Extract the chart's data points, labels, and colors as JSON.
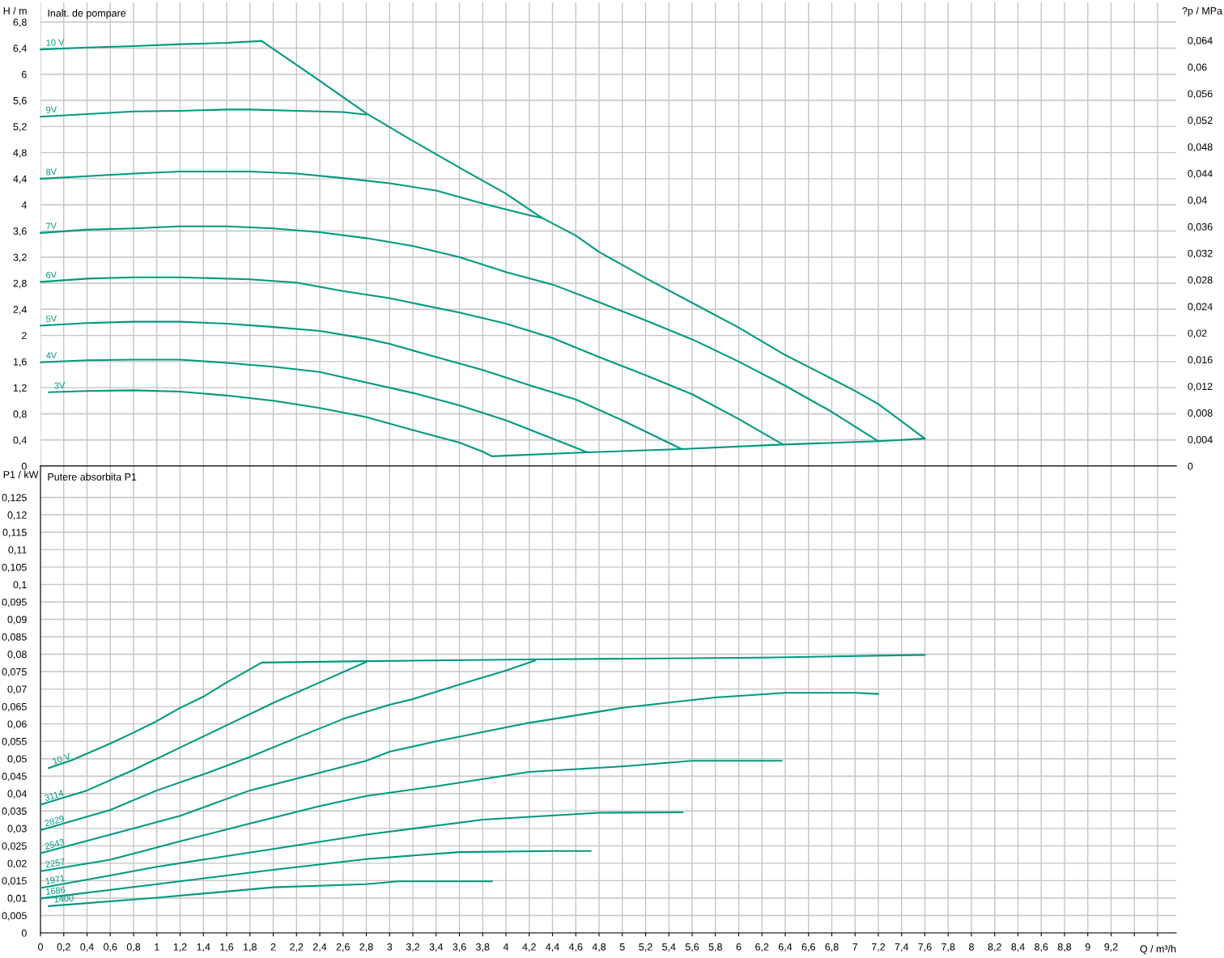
{
  "chart_data": [
    {
      "type": "line",
      "title": "Inalt. de pompare",
      "ylabel": "H / m",
      "y2label": "?p / MPa",
      "grid": true,
      "tick_labels": "y",
      "xlim": [
        0,
        9.76
      ],
      "ylim": [
        0,
        7.1
      ],
      "y2lim": [
        0,
        0.0697
      ],
      "xticks": [
        0,
        0.2,
        0.4,
        0.6,
        0.8,
        1,
        1.2,
        1.4,
        1.6,
        1.8,
        2,
        2.2,
        2.4,
        2.6,
        2.8,
        3,
        3.2,
        3.4,
        3.6,
        3.8,
        4,
        4.2,
        4.4,
        4.6,
        4.8,
        5,
        5.2,
        5.4,
        5.6,
        5.8,
        6,
        6.2,
        6.4,
        6.6,
        6.8,
        7,
        7.2,
        7.4,
        7.6,
        7.8,
        8,
        8.2,
        8.4,
        8.6,
        8.8,
        9,
        9.2,
        9.4,
        9.6
      ],
      "yticks": [
        0,
        {
          "value": 0.4,
          "label": "0,4"
        },
        {
          "value": 0.8,
          "label": "0,8"
        },
        {
          "value": 1.2,
          "label": "1,2"
        },
        {
          "value": 1.6,
          "label": "1,6"
        },
        2,
        {
          "value": 2.4,
          "label": "2,4"
        },
        {
          "value": 2.8,
          "label": "2,8"
        },
        {
          "value": 3.2,
          "label": "3,2"
        },
        {
          "value": 3.6,
          "label": "3,6"
        },
        4,
        {
          "value": 4.4,
          "label": "4,4"
        },
        {
          "value": 4.8,
          "label": "4,8"
        },
        {
          "value": 5.2,
          "label": "5,2"
        },
        {
          "value": 5.6,
          "label": "5,6"
        },
        6,
        {
          "value": 6.4,
          "label": "6,4"
        },
        {
          "value": 6.8,
          "label": "6,8"
        }
      ],
      "y2ticks": [
        0,
        {
          "value": 0.004,
          "label": "0,004"
        },
        {
          "value": 0.008,
          "label": "0,008"
        },
        {
          "value": 0.012,
          "label": "0,012"
        },
        {
          "value": 0.016,
          "label": "0,016"
        },
        {
          "value": 0.02,
          "label": "0,02"
        },
        {
          "value": 0.024,
          "label": "0,024"
        },
        {
          "value": 0.028,
          "label": "0,028"
        },
        {
          "value": 0.032,
          "label": "0,032"
        },
        {
          "value": 0.036,
          "label": "0,036"
        },
        {
          "value": 0.04,
          "label": "0,04"
        },
        {
          "value": 0.044,
          "label": "0,044"
        },
        {
          "value": 0.048,
          "label": "0,048"
        },
        {
          "value": 0.052,
          "label": "0,052"
        },
        {
          "value": 0.056,
          "label": "0,056"
        },
        {
          "value": 0.06,
          "label": "0,06"
        },
        {
          "value": 0.064,
          "label": "0,064"
        }
      ],
      "series": [
        {
          "name": "10 V",
          "color": "#00997f",
          "x": [
            0,
            0.4,
            0.8,
            1.2,
            1.6,
            1.9,
            2.4,
            2.8,
            3.2,
            3.6,
            4.0,
            4.31,
            4.6,
            4.8,
            5.2,
            5.6,
            6.0,
            6.4,
            6.6,
            7.0,
            7.2,
            7.6
          ],
          "values": [
            6.38,
            6.41,
            6.43,
            6.46,
            6.48,
            6.51,
            5.9,
            5.4,
            4.98,
            4.57,
            4.17,
            3.8,
            3.53,
            3.28,
            2.88,
            2.5,
            2.12,
            1.7,
            1.52,
            1.15,
            0.95,
            0.42
          ]
        },
        {
          "name": "9V",
          "color": "#00997f",
          "x": [
            0,
            0.4,
            0.8,
            1.2,
            1.6,
            1.8,
            2.2,
            2.6,
            2.8
          ],
          "values": [
            5.35,
            5.39,
            5.43,
            5.44,
            5.46,
            5.46,
            5.44,
            5.42,
            5.38
          ]
        },
        {
          "name": "8V",
          "color": "#00997f",
          "x": [
            0,
            0.4,
            0.8,
            1.2,
            1.8,
            2.2,
            2.6,
            3.0,
            3.4,
            3.8,
            4.2,
            4.31
          ],
          "values": [
            4.4,
            4.44,
            4.48,
            4.51,
            4.51,
            4.48,
            4.41,
            4.33,
            4.22,
            4.02,
            3.84,
            3.8
          ]
        },
        {
          "name": "7V",
          "color": "#00997f",
          "x": [
            0,
            0.4,
            0.8,
            1.2,
            1.6,
            2.0,
            2.4,
            2.8,
            3.2,
            3.6,
            4.0,
            4.4,
            4.8,
            5.2,
            5.6,
            6.0,
            6.4,
            6.8,
            7.2
          ],
          "values": [
            3.57,
            3.62,
            3.64,
            3.67,
            3.67,
            3.64,
            3.58,
            3.49,
            3.37,
            3.2,
            2.97,
            2.78,
            2.51,
            2.23,
            1.94,
            1.6,
            1.23,
            0.83,
            0.38
          ]
        },
        {
          "name": "6V",
          "color": "#00997f",
          "x": [
            0,
            0.4,
            0.8,
            1.2,
            1.8,
            2.2,
            2.6,
            3.0,
            3.6,
            4.0,
            4.4,
            4.8,
            5.2,
            5.6,
            6.0,
            6.38
          ],
          "values": [
            2.82,
            2.87,
            2.89,
            2.89,
            2.86,
            2.81,
            2.68,
            2.57,
            2.35,
            2.18,
            1.96,
            1.67,
            1.39,
            1.1,
            0.72,
            0.33
          ]
        },
        {
          "name": "5V",
          "color": "#00997f",
          "x": [
            0,
            0.4,
            0.8,
            1.2,
            1.6,
            2.0,
            2.4,
            2.8,
            3.0,
            3.4,
            3.8,
            4.2,
            4.6,
            5.0,
            5.51
          ],
          "values": [
            2.15,
            2.19,
            2.21,
            2.21,
            2.18,
            2.13,
            2.07,
            1.95,
            1.87,
            1.67,
            1.47,
            1.24,
            1.02,
            0.7,
            0.26
          ]
        },
        {
          "name": "4V",
          "color": "#00997f",
          "x": [
            0,
            0.4,
            0.8,
            1.2,
            1.6,
            2.0,
            2.4,
            2.8,
            3.2,
            3.6,
            4.0,
            4.2,
            4.7
          ],
          "values": [
            1.59,
            1.62,
            1.63,
            1.63,
            1.58,
            1.52,
            1.44,
            1.28,
            1.12,
            0.93,
            0.7,
            0.56,
            0.21
          ]
        },
        {
          "name": "3V",
          "color": "#00997f",
          "x": [
            0.07,
            0.4,
            0.8,
            1.2,
            1.6,
            2.0,
            2.4,
            2.8,
            3.2,
            3.6,
            3.8,
            3.88
          ],
          "values": [
            1.13,
            1.15,
            1.16,
            1.14,
            1.08,
            1.0,
            0.89,
            0.75,
            0.55,
            0.36,
            0.22,
            0.15
          ]
        },
        {
          "color": "#00997f",
          "x": [
            3.88,
            4.7,
            5.51,
            6.38,
            7.2,
            7.6
          ],
          "values": [
            0.15,
            0.21,
            0.26,
            0.33,
            0.38,
            0.42
          ]
        }
      ]
    },
    {
      "type": "line",
      "title": "Putere absorbita P1",
      "ylabel": "P1 / kW",
      "xlabel": "Q / m³/h",
      "grid": true,
      "xlim": [
        0,
        9.76
      ],
      "ylim": [
        0,
        0.134
      ],
      "xticks": [
        0,
        {
          "value": 0.2,
          "label": "0,2"
        },
        {
          "value": 0.4,
          "label": "0,4"
        },
        {
          "value": 0.6,
          "label": "0,6"
        },
        {
          "value": 0.8,
          "label": "0,8"
        },
        1,
        {
          "value": 1.2,
          "label": "1,2"
        },
        {
          "value": 1.4,
          "label": "1,4"
        },
        {
          "value": 1.6,
          "label": "1,6"
        },
        {
          "value": 1.8,
          "label": "1,8"
        },
        2,
        {
          "value": 2.2,
          "label": "2,2"
        },
        {
          "value": 2.4,
          "label": "2,4"
        },
        {
          "value": 2.6,
          "label": "2,6"
        },
        {
          "value": 2.8,
          "label": "2,8"
        },
        3,
        {
          "value": 3.2,
          "label": "3,2"
        },
        {
          "value": 3.4,
          "label": "3,4"
        },
        {
          "value": 3.6,
          "label": "3,6"
        },
        {
          "value": 3.8,
          "label": "3,8"
        },
        4,
        {
          "value": 4.2,
          "label": "4,2"
        },
        {
          "value": 4.4,
          "label": "4,4"
        },
        {
          "value": 4.6,
          "label": "4,6"
        },
        {
          "value": 4.8,
          "label": "4,8"
        },
        5,
        {
          "value": 5.2,
          "label": "5,2"
        },
        {
          "value": 5.4,
          "label": "5,4"
        },
        {
          "value": 5.6,
          "label": "5,6"
        },
        {
          "value": 5.8,
          "label": "5,8"
        },
        6,
        {
          "value": 6.2,
          "label": "6,2"
        },
        {
          "value": 6.4,
          "label": "6,4"
        },
        {
          "value": 6.6,
          "label": "6,6"
        },
        {
          "value": 6.8,
          "label": "6,8"
        },
        7,
        {
          "value": 7.2,
          "label": "7,2"
        },
        {
          "value": 7.4,
          "label": "7,4"
        },
        {
          "value": 7.6,
          "label": "7,6"
        },
        {
          "value": 7.8,
          "label": "7,8"
        },
        8,
        {
          "value": 8.2,
          "label": "8,2"
        },
        {
          "value": 8.4,
          "label": "8,4"
        },
        {
          "value": 8.6,
          "label": "8,6"
        },
        {
          "value": 8.8,
          "label": "8,8"
        },
        9,
        {
          "value": 9.2,
          "label": "9,2"
        },
        {
          "value": 9.4,
          "label": null
        },
        {
          "value": 9.6,
          "label": null
        }
      ],
      "yticks": [
        0,
        {
          "value": 0.005,
          "label": "0,005"
        },
        {
          "value": 0.01,
          "label": "0,01"
        },
        {
          "value": 0.015,
          "label": "0,015"
        },
        {
          "value": 0.02,
          "label": "0,02"
        },
        {
          "value": 0.025,
          "label": "0,025"
        },
        {
          "value": 0.03,
          "label": "0,03"
        },
        {
          "value": 0.035,
          "label": "0,035"
        },
        {
          "value": 0.04,
          "label": "0,04"
        },
        {
          "value": 0.045,
          "label": "0,045"
        },
        {
          "value": 0.05,
          "label": "0,05"
        },
        {
          "value": 0.055,
          "label": "0,055"
        },
        {
          "value": 0.06,
          "label": "0,06"
        },
        {
          "value": 0.065,
          "label": "0,065"
        },
        {
          "value": 0.07,
          "label": "0,07"
        },
        {
          "value": 0.075,
          "label": "0,075"
        },
        {
          "value": 0.08,
          "label": "0,08"
        },
        {
          "value": 0.085,
          "label": "0,085"
        },
        {
          "value": 0.09,
          "label": "0,09"
        },
        {
          "value": 0.095,
          "label": "0,095"
        },
        {
          "value": 0.1,
          "label": "0,1"
        },
        {
          "value": 0.105,
          "label": "0,105"
        },
        {
          "value": 0.11,
          "label": "0,11"
        },
        {
          "value": 0.115,
          "label": "0,115"
        },
        {
          "value": 0.12,
          "label": "0,12"
        },
        {
          "value": 0.125,
          "label": "0,125"
        }
      ],
      "series": [
        {
          "name": "10 V",
          "color": "#00997f",
          "x": [
            0.07,
            0.27,
            0.63,
            0.8,
            1.0,
            1.2,
            1.4,
            1.6,
            1.8,
            1.9,
            2.8,
            4.2,
            6.2,
            7.6
          ],
          "values": [
            0.0473,
            0.0496,
            0.0548,
            0.0575,
            0.0608,
            0.0646,
            0.0678,
            0.0719,
            0.0757,
            0.0776,
            0.078,
            0.0785,
            0.079,
            0.0798
          ]
        },
        {
          "name": "3114",
          "color": "#00997f",
          "x": [
            0,
            0.4,
            0.8,
            1.2,
            1.6,
            2.0,
            2.4,
            2.8
          ],
          "values": [
            0.0368,
            0.0409,
            0.0468,
            0.0532,
            0.0596,
            0.066,
            0.0719,
            0.0778
          ]
        },
        {
          "name": "2829",
          "color": "#00997f",
          "x": [
            0,
            0.6,
            1.0,
            1.4,
            1.8,
            2.2,
            2.6,
            3.0,
            3.2,
            3.6,
            4.0,
            4.25
          ],
          "values": [
            0.0295,
            0.0353,
            0.0409,
            0.0455,
            0.0505,
            0.056,
            0.0614,
            0.0655,
            0.0671,
            0.0713,
            0.0753,
            0.0782
          ]
        },
        {
          "name": "2543",
          "color": "#00997f",
          "x": [
            0,
            0.6,
            1.2,
            1.8,
            2.4,
            2.8,
            3.0,
            3.4,
            4.2,
            5.0,
            5.8,
            6.4,
            7.0,
            7.2
          ],
          "values": [
            0.0229,
            0.0282,
            0.0336,
            0.0409,
            0.046,
            0.0494,
            0.052,
            0.055,
            0.0603,
            0.0646,
            0.0676,
            0.0689,
            0.0689,
            0.0686
          ]
        },
        {
          "name": "2257",
          "color": "#00997f",
          "x": [
            0,
            0.6,
            1.2,
            1.8,
            2.4,
            2.8,
            3.4,
            4.2,
            5.0,
            5.6,
            6.37
          ],
          "values": [
            0.0177,
            0.021,
            0.0263,
            0.0314,
            0.0364,
            0.0393,
            0.0421,
            0.0462,
            0.0478,
            0.0494,
            0.0494
          ]
        },
        {
          "name": "1971",
          "color": "#00997f",
          "x": [
            0,
            0.6,
            1.0,
            2.0,
            2.8,
            3.8,
            4.8,
            5.52
          ],
          "values": [
            0.0129,
            0.0165,
            0.019,
            0.0241,
            0.0282,
            0.0325,
            0.0345,
            0.0346
          ]
        },
        {
          "name": "1686",
          "color": "#00997f",
          "x": [
            0,
            1.0,
            2.0,
            2.8,
            3.6,
            4.4,
            4.73
          ],
          "values": [
            0.0099,
            0.014,
            0.0181,
            0.0212,
            0.0232,
            0.0235,
            0.0235
          ]
        },
        {
          "name": "1400",
          "color": "#00997f",
          "x": [
            0.07,
            1.0,
            2.0,
            2.8,
            3.07,
            3.88
          ],
          "values": [
            0.0077,
            0.0101,
            0.0131,
            0.014,
            0.0148,
            0.0148
          ]
        }
      ]
    }
  ]
}
